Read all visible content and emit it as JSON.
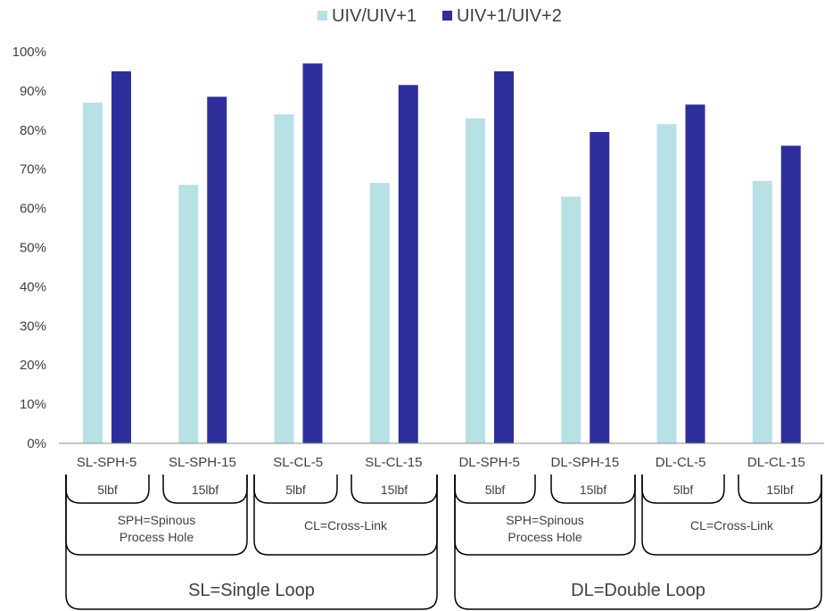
{
  "chart_data": {
    "type": "bar",
    "categories": [
      "SL-SPH-5",
      "SL-SPH-15",
      "SL-CL-5",
      "SL-CL-15",
      "DL-SPH-5",
      "DL-SPH-15",
      "DL-CL-5",
      "DL-CL-15"
    ],
    "series": [
      {
        "name": "UIV/UIV+1",
        "color": "#b7e1e4",
        "values": [
          87,
          66,
          84,
          66.5,
          83,
          63,
          81.5,
          67
        ]
      },
      {
        "name": "UIV+1/UIV+2",
        "color": "#2e2e9a",
        "values": [
          95,
          88.5,
          97,
          91.5,
          95,
          79.5,
          86.5,
          76
        ]
      }
    ],
    "y_ticks": [
      "0%",
      "10%",
      "20%",
      "30%",
      "40%",
      "50%",
      "60%",
      "70%",
      "80%",
      "90%",
      "100%"
    ],
    "ylim": [
      0,
      100
    ],
    "legend_position": "top-center",
    "grid": false
  },
  "annotations": {
    "load_labels": [
      "5lbf",
      "15lbf",
      "5lbf",
      "15lbf",
      "5lbf",
      "15lbf",
      "5lbf",
      "15lbf"
    ],
    "group_labels": [
      {
        "line1": "SPH=Spinous",
        "line2": "Process Hole"
      },
      {
        "line1": "CL=Cross-Link",
        "line2": ""
      },
      {
        "line1": "SPH=Spinous",
        "line2": "Process Hole"
      },
      {
        "line1": "CL=Cross-Link",
        "line2": ""
      }
    ],
    "loop_labels": [
      "SL=Single Loop",
      "DL=Double Loop"
    ]
  }
}
